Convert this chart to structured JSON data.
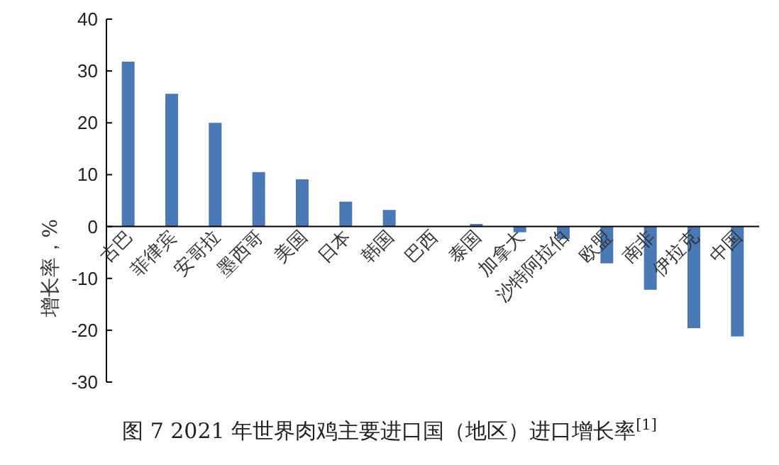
{
  "chart_data": {
    "type": "bar",
    "title": "图 7  2021 年世界肉鸡主要进口国（地区）进口增长率$^{[1]}$",
    "ylabel": "增长率，%",
    "categories": [
      "古巴",
      "菲律宾",
      "安哥拉",
      "墨西哥",
      "美国",
      "日本",
      "韩国",
      "巴西",
      "泰国",
      "加拿大",
      "沙特阿拉伯",
      "欧盟",
      "南非",
      "伊拉克",
      "中国"
    ],
    "values": [
      31.8,
      25.6,
      20.0,
      10.5,
      9.1,
      4.8,
      3.2,
      0,
      0.5,
      -1.1,
      -2.4,
      -7.1,
      -12.2,
      -19.6,
      -21.2
    ],
    "color": "#4a7ab5",
    "ylim": [
      -30,
      40
    ],
    "yticks": [
      -30,
      -20,
      -10,
      0,
      10,
      20,
      30,
      40
    ],
    "grid": false,
    "legend": false
  }
}
